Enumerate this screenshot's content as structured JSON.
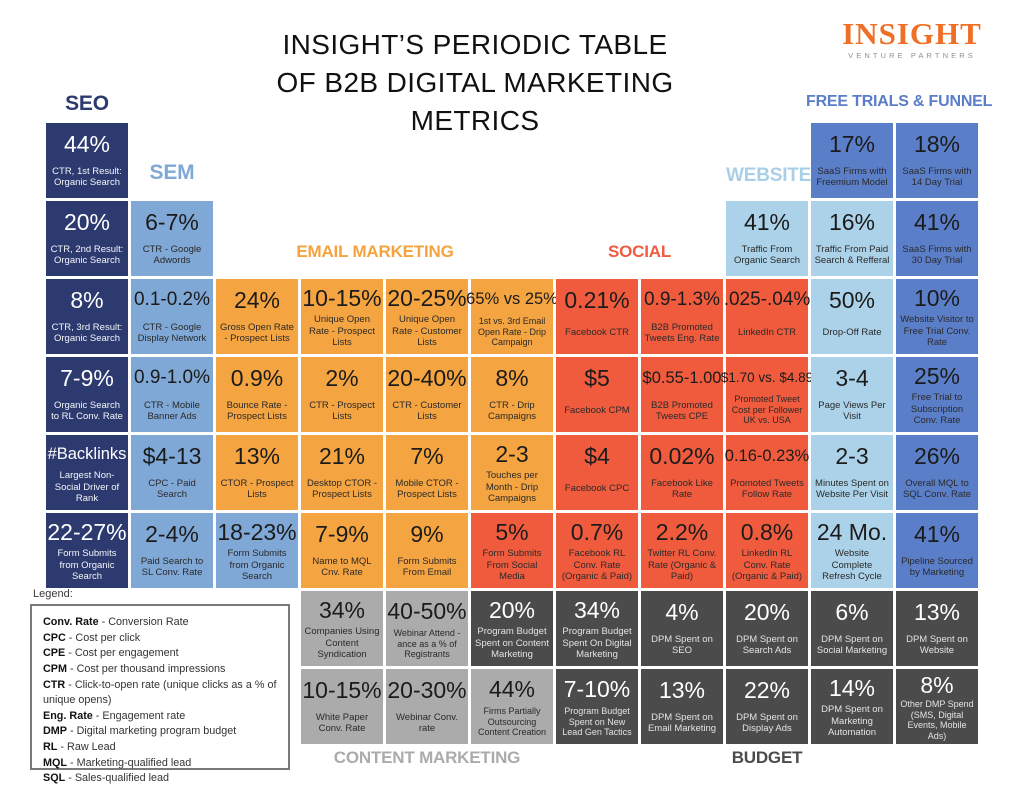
{
  "header": {
    "title_lines": [
      "INSIGHT’S PERIODIC TABLE",
      "OF B2B DIGITAL MARKETING",
      "METRICS"
    ],
    "logo": {
      "name": "INSIGHT",
      "subtitle": "VENTURE PARTNERS"
    }
  },
  "palette": {
    "seo_navy": "#2D3A70",
    "sem_blue": "#7FA8D6",
    "email_orange": "#F4A440",
    "social_red": "#F05B3E",
    "website_lightblue": "#ABD2E8",
    "freetrials_medblue": "#5B7EC9",
    "content_lightgray": "#ABABAB",
    "budget_darkgray": "#4B4B4B",
    "logo_orange": "#F06F26"
  },
  "groups": {
    "seo": {
      "label": "SEO"
    },
    "sem": {
      "label": "SEM"
    },
    "email": {
      "label": "EMAIL MARKETING"
    },
    "social": {
      "label": "SOCIAL"
    },
    "website": {
      "label": "WEBSITE"
    },
    "free_trials": {
      "label": "FREE TRIALS & FUNNEL"
    },
    "content": {
      "label": "CONTENT MARKETING"
    },
    "budget": {
      "label": "BUDGET"
    }
  },
  "legend": {
    "title": "Legend:",
    "items": [
      {
        "term": "Conv. Rate",
        "definition": "Conversion Rate"
      },
      {
        "term": "CPC",
        "definition": "Cost per click"
      },
      {
        "term": "CPE",
        "definition": "Cost per engagement"
      },
      {
        "term": "CPM",
        "definition": "Cost per thousand impressions"
      },
      {
        "term": "CTR",
        "definition": "Click-to-open rate (unique clicks as a % of unique opens)"
      },
      {
        "term": "Eng. Rate",
        "definition": "Engagement rate"
      },
      {
        "term": "DMP",
        "definition": "Digital marketing program budget"
      },
      {
        "term": "RL",
        "definition": "Raw Lead"
      },
      {
        "term": "MQL",
        "definition": "Marketing-qualified lead"
      },
      {
        "term": "SQL",
        "definition": "Sales-qualified lead"
      }
    ]
  },
  "grid": {
    "cells": [
      {
        "col": 1,
        "row": 1,
        "color": "navy",
        "value": "44%",
        "label": "CTR, 1st Result: Organic Search"
      },
      {
        "col": 10,
        "row": 1,
        "color": "medblue",
        "value": "17%",
        "label": "SaaS Firms with Freemium Model"
      },
      {
        "col": 11,
        "row": 1,
        "color": "medblue",
        "value": "18%",
        "label": "SaaS Firms with 14 Day Trial"
      },
      {
        "col": 1,
        "row": 2,
        "color": "navy",
        "value": "20%",
        "label": "CTR, 2nd Result: Organic Search"
      },
      {
        "col": 2,
        "row": 2,
        "color": "blue",
        "value": "6-7%",
        "label": "CTR - Google Adwords"
      },
      {
        "col": 9,
        "row": 2,
        "color": "lightblue",
        "value": "41%",
        "label": "Traffic From Organic Search"
      },
      {
        "col": 10,
        "row": 2,
        "color": "lightblue",
        "value": "16%",
        "label": "Traffic From Paid Search & Refferal"
      },
      {
        "col": 11,
        "row": 2,
        "color": "medblue",
        "value": "41%",
        "label": "SaaS Firms with 30 Day Trial"
      },
      {
        "col": 1,
        "row": 3,
        "color": "navy",
        "value": "8%",
        "label": "CTR, 3rd Result: Organic Search"
      },
      {
        "col": 2,
        "row": 3,
        "color": "blue",
        "value": "0.1-0.2%",
        "label": "CTR - Google Display Network"
      },
      {
        "col": 3,
        "row": 3,
        "color": "orange",
        "value": "24%",
        "label": "Gross Open Rate - Prospect Lists"
      },
      {
        "col": 4,
        "row": 3,
        "color": "orange",
        "value": "10-15%",
        "label": "Unique Open Rate - Prospect Lists"
      },
      {
        "col": 5,
        "row": 3,
        "color": "orange",
        "value": "20-25%",
        "label": "Unique Open Rate - Customer Lists"
      },
      {
        "col": 6,
        "row": 3,
        "color": "orange",
        "value": "65% vs 25%",
        "label": "1st vs. 3rd Email Open Rate - Drip Campaign"
      },
      {
        "col": 7,
        "row": 3,
        "color": "red",
        "value": "0.21%",
        "label": "Facebook CTR"
      },
      {
        "col": 8,
        "row": 3,
        "color": "red",
        "value": "0.9-1.3%",
        "label": "B2B Promoted Tweets Eng. Rate"
      },
      {
        "col": 9,
        "row": 3,
        "color": "red",
        "value": ".025-.04%",
        "label": "LinkedIn CTR"
      },
      {
        "col": 10,
        "row": 3,
        "color": "lightblue",
        "value": "50%",
        "label": "Drop-Off Rate"
      },
      {
        "col": 11,
        "row": 3,
        "color": "medblue",
        "value": "10%",
        "label": "Website Visitor to Free Trial Conv. Rate"
      },
      {
        "col": 1,
        "row": 4,
        "color": "navy",
        "value": "7-9%",
        "label": "Organic Search to RL Conv. Rate"
      },
      {
        "col": 2,
        "row": 4,
        "color": "blue",
        "value": "0.9-1.0%",
        "label": "CTR - Mobile Banner Ads"
      },
      {
        "col": 3,
        "row": 4,
        "color": "orange",
        "value": "0.9%",
        "label": "Bounce Rate - Prospect Lists"
      },
      {
        "col": 4,
        "row": 4,
        "color": "orange",
        "value": "2%",
        "label": "CTR - Prospect Lists"
      },
      {
        "col": 5,
        "row": 4,
        "color": "orange",
        "value": "20-40%",
        "label": "CTR - Customer Lists"
      },
      {
        "col": 6,
        "row": 4,
        "color": "orange",
        "value": "8%",
        "label": "CTR - Drip Campaigns"
      },
      {
        "col": 7,
        "row": 4,
        "color": "red",
        "value": "$5",
        "label": "Facebook CPM"
      },
      {
        "col": 8,
        "row": 4,
        "color": "red",
        "value": "$0.55-1.00",
        "label": "B2B Promoted Tweets CPE"
      },
      {
        "col": 9,
        "row": 4,
        "color": "red",
        "value": "$1.70 vs. $4.89",
        "label": "Promoted Tweet Cost per Follower UK vs. USA"
      },
      {
        "col": 10,
        "row": 4,
        "color": "lightblue",
        "value": "3-4",
        "label": "Page Views Per Visit"
      },
      {
        "col": 11,
        "row": 4,
        "color": "medblue",
        "value": "25%",
        "label": "Free Trial to Subscription Conv. Rate"
      },
      {
        "col": 1,
        "row": 5,
        "color": "navy",
        "value": "#Backlinks",
        "label": "Largest Non-Social Driver of Rank"
      },
      {
        "col": 2,
        "row": 5,
        "color": "blue",
        "value": "$4-13",
        "label": "CPC - Paid Search"
      },
      {
        "col": 3,
        "row": 5,
        "color": "orange",
        "value": "13%",
        "label": "CTOR - Prospect Lists"
      },
      {
        "col": 4,
        "row": 5,
        "color": "orange",
        "value": "21%",
        "label": "Desktop CTOR - Prospect Lists"
      },
      {
        "col": 5,
        "row": 5,
        "color": "orange",
        "value": "7%",
        "label": "Mobile CTOR - Prospect Lists"
      },
      {
        "col": 6,
        "row": 5,
        "color": "orange",
        "value": "2-3",
        "label": "Touches per Month - Drip Campaigns"
      },
      {
        "col": 7,
        "row": 5,
        "color": "red",
        "value": "$4",
        "label": "Facebook CPC"
      },
      {
        "col": 8,
        "row": 5,
        "color": "red",
        "value": "0.02%",
        "label": "Facebook Like Rate"
      },
      {
        "col": 9,
        "row": 5,
        "color": "red",
        "value": "0.16-0.23%",
        "label": "Promoted Tweets Follow Rate"
      },
      {
        "col": 10,
        "row": 5,
        "color": "lightblue",
        "value": "2-3",
        "label": "Minutes Spent on Website Per Visit"
      },
      {
        "col": 11,
        "row": 5,
        "color": "medblue",
        "value": "26%",
        "label": "Overall MQL to SQL Conv. Rate"
      },
      {
        "col": 1,
        "row": 6,
        "color": "navy",
        "value": "22-27%",
        "label": "Form Submits from Organic Search"
      },
      {
        "col": 2,
        "row": 6,
        "color": "blue",
        "value": "2-4%",
        "label": "Paid Search to SL Conv. Rate"
      },
      {
        "col": 3,
        "row": 6,
        "color": "blue",
        "value": "18-23%",
        "label": "Form Submits from Organic Search"
      },
      {
        "col": 4,
        "row": 6,
        "color": "orange",
        "value": "7-9%",
        "label": "Name to MQL Cnv. Rate"
      },
      {
        "col": 5,
        "row": 6,
        "color": "orange",
        "value": "9%",
        "label": "Form Submits From Email"
      },
      {
        "col": 6,
        "row": 6,
        "color": "red",
        "value": "5%",
        "label": "Form Submits From Social Media"
      },
      {
        "col": 7,
        "row": 6,
        "color": "red",
        "value": "0.7%",
        "label": "Facebook RL Conv. Rate (Organic & Paid)"
      },
      {
        "col": 8,
        "row": 6,
        "color": "red",
        "value": "2.2%",
        "label": "Twitter RL Conv. Rate (Organic & Paid)"
      },
      {
        "col": 9,
        "row": 6,
        "color": "red",
        "value": "0.8%",
        "label": "LinkedIn RL Conv. Rate (Organic & Paid)"
      },
      {
        "col": 10,
        "row": 6,
        "color": "lightblue",
        "value": "24 Mo.",
        "label": "Website Complete Refresh Cycle"
      },
      {
        "col": 11,
        "row": 6,
        "color": "medblue",
        "value": "41%",
        "label": "Pipeline Sourced by Marketing"
      },
      {
        "col": 4,
        "row": 7,
        "color": "lightgray",
        "value": "34%",
        "label": "Companies Using Content Syndication"
      },
      {
        "col": 5,
        "row": 7,
        "color": "lightgray",
        "value": "40-50%",
        "label": "Webinar Attend - ance as a % of Registrants"
      },
      {
        "col": 6,
        "row": 7,
        "color": "darkgray",
        "value": "20%",
        "label": "Program Budget Spent on Content Marketing"
      },
      {
        "col": 7,
        "row": 7,
        "color": "darkgray",
        "value": "34%",
        "label": "Program Budget Spent On Digital Marketing"
      },
      {
        "col": 8,
        "row": 7,
        "color": "darkgray",
        "value": "4%",
        "label": "DPM Spent on SEO"
      },
      {
        "col": 9,
        "row": 7,
        "color": "darkgray",
        "value": "20%",
        "label": "DPM Spent on Search Ads"
      },
      {
        "col": 10,
        "row": 7,
        "color": "darkgray",
        "value": "6%",
        "label": "DPM Spent on Social Marketing"
      },
      {
        "col": 11,
        "row": 7,
        "color": "darkgray",
        "value": "13%",
        "label": "DPM Spent on Website"
      },
      {
        "col": 4,
        "row": 8,
        "color": "lightgray",
        "value": "10-15%",
        "label": "White Paper Conv. Rate"
      },
      {
        "col": 5,
        "row": 8,
        "color": "lightgray",
        "value": "20-30%",
        "label": "Webinar Conv. rate"
      },
      {
        "col": 6,
        "row": 8,
        "color": "lightgray",
        "value": "44%",
        "label": "Firms Partially Outsourcing Content Creation"
      },
      {
        "col": 7,
        "row": 8,
        "color": "darkgray",
        "value": "7-10%",
        "label": "Program Budget Spent on New Lead Gen Tactics"
      },
      {
        "col": 8,
        "row": 8,
        "color": "darkgray",
        "value": "13%",
        "label": "DPM Spent on Email Marketing"
      },
      {
        "col": 9,
        "row": 8,
        "color": "darkgray",
        "value": "22%",
        "label": "DPM Spent on Display Ads"
      },
      {
        "col": 10,
        "row": 8,
        "color": "darkgray",
        "value": "14%",
        "label": "DPM Spent on Marketing Automation"
      },
      {
        "col": 11,
        "row": 8,
        "color": "darkgray",
        "value": "8%",
        "label": "Other DMP Spend (SMS, Digital Events, Mobile Ads)"
      }
    ]
  }
}
